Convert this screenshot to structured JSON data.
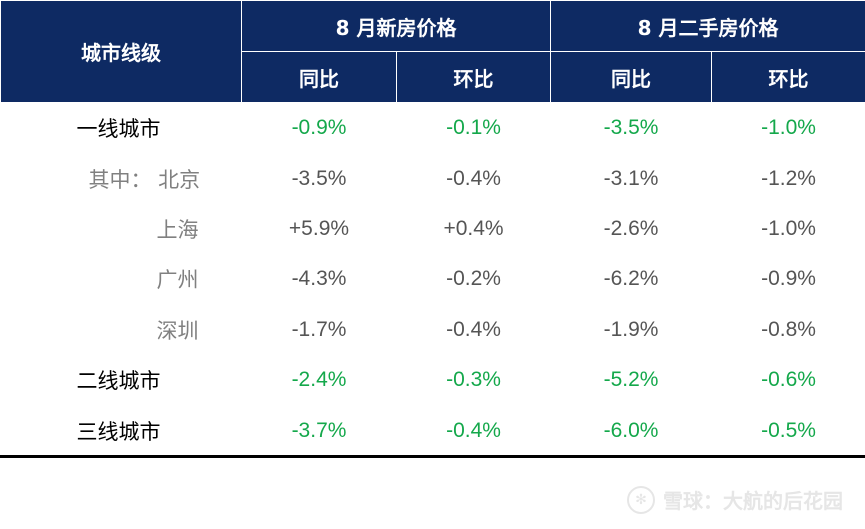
{
  "header": {
    "city_tier": "城市线级",
    "new_home": "8 月新房价格",
    "resale_home": "8 月二手房价格",
    "yoy": "同比",
    "mom": "环比"
  },
  "rows": [
    {
      "label": "一线城市",
      "new_yoy": "-0.9%",
      "new_mom": "-0.1%",
      "old_yoy": "-3.5%",
      "old_mom": "-1.0%"
    },
    {
      "label": "其中：  北京",
      "new_yoy": "-3.5%",
      "new_mom": "-0.4%",
      "old_yoy": "-3.1%",
      "old_mom": "-1.2%"
    },
    {
      "label": "上海",
      "new_yoy": "+5.9%",
      "new_mom": "+0.4%",
      "old_yoy": "-2.6%",
      "old_mom": "-1.0%"
    },
    {
      "label": "广州",
      "new_yoy": "-4.3%",
      "new_mom": "-0.2%",
      "old_yoy": "-6.2%",
      "old_mom": "-0.9%"
    },
    {
      "label": "深圳",
      "new_yoy": "-1.7%",
      "new_mom": "-0.4%",
      "old_yoy": "-1.9%",
      "old_mom": "-0.8%"
    },
    {
      "label": "二线城市",
      "new_yoy": "-2.4%",
      "new_mom": "-0.3%",
      "old_yoy": "-5.2%",
      "old_mom": "-0.6%"
    },
    {
      "label": "三线城市",
      "new_yoy": "-3.7%",
      "new_mom": "-0.4%",
      "old_yoy": "-6.0%",
      "old_mom": "-0.5%"
    }
  ],
  "watermark": {
    "text": "雪球：大航的后花园",
    "icon": "snowball-logo-icon"
  },
  "colors": {
    "header_bg": "#0e2a63",
    "positive_text": "#14a84b",
    "sub_text": "#555555"
  }
}
